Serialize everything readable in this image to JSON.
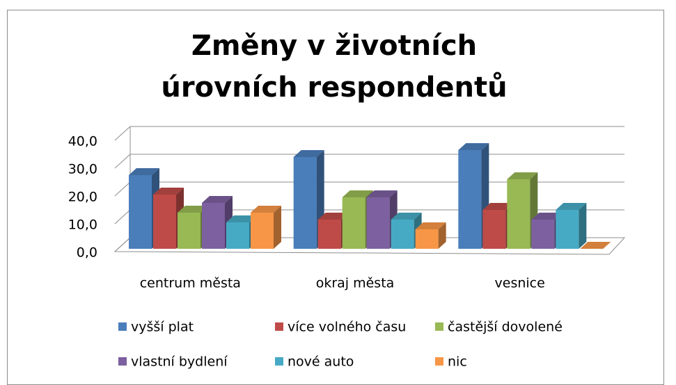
{
  "chart_data": {
    "type": "bar3d",
    "title": "Změny v životních úrovních respondentů",
    "categories": [
      "centrum města",
      "okraj města",
      "vesnice"
    ],
    "series": [
      {
        "name": "vyšší plat",
        "color": "#4a7ebb",
        "values": [
          26.5,
          33,
          35.5
        ]
      },
      {
        "name": "více volného času",
        "color": "#be4b48",
        "values": [
          19.5,
          10.5,
          14
        ]
      },
      {
        "name": "častější dovolené",
        "color": "#98b954",
        "values": [
          13,
          18.5,
          25
        ]
      },
      {
        "name": "vlastní bydlení",
        "color": "#7d60a0",
        "values": [
          16.5,
          18.5,
          10.5
        ]
      },
      {
        "name": "nové auto",
        "color": "#46aac5",
        "values": [
          9.5,
          10.5,
          14
        ]
      },
      {
        "name": "nic",
        "color": "#f79646",
        "values": [
          13,
          7,
          0
        ]
      }
    ],
    "ylim": [
      0,
      40
    ],
    "yticks": [
      {
        "value": 0,
        "label": "0,0"
      },
      {
        "value": 10,
        "label": "10,0"
      },
      {
        "value": 20,
        "label": "20,0"
      },
      {
        "value": 30,
        "label": "30,0"
      },
      {
        "value": 40,
        "label": "40,0"
      }
    ],
    "grid": true,
    "legend": "bottom"
  }
}
